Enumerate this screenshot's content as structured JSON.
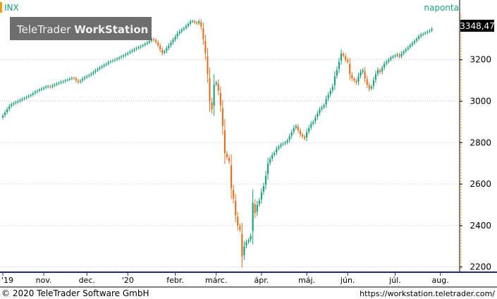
{
  "header": {
    "symbol": "INX",
    "period": "naponta",
    "logo_light": "TeleTrader ",
    "logo_bold": "WorkStation"
  },
  "last_price_label": "3348,47",
  "footer": {
    "copyright": "© 2020 TeleTrader Software GmbH",
    "url": "https://workstation.teletrader.com/"
  },
  "colors": {
    "up": "#1a9f7d",
    "down": "#e4701f",
    "accent": "#f0a000",
    "axis": "#000000",
    "axis_bottom": "#1a2b80",
    "grid": "#c8c8c8",
    "logo_bg": "#6e6e6e",
    "price_box_bg": "#000000"
  },
  "chart_data": {
    "type": "candlestick",
    "symbol": "INX",
    "period": "naponta",
    "y_ticks": [
      2200,
      2400,
      2600,
      2800,
      3000,
      3200
    ],
    "y_tick_labels": [
      "2200",
      "2400",
      "2600",
      "2800",
      "3000",
      "3200"
    ],
    "ylim": [
      2175,
      3420
    ],
    "x_tick_labels": [
      "'19",
      "nov.",
      "dec.",
      "'20",
      "febr.",
      "márc.",
      "ápr.",
      "máj.",
      "jún.",
      "júl.",
      "aug."
    ],
    "x_tick_bar_index": [
      0,
      19,
      39,
      58,
      80,
      99,
      120,
      141,
      160,
      182,
      203
    ],
    "bar_count": 210,
    "last_close": 3348.47,
    "grid": true,
    "closes": [
      2930,
      2945,
      2960,
      2975,
      2985,
      2990,
      2995,
      3000,
      3005,
      3010,
      3015,
      3020,
      3025,
      3030,
      3038,
      3045,
      3050,
      3055,
      3060,
      3065,
      3070,
      3072,
      3068,
      3075,
      3080,
      3085,
      3088,
      3092,
      3095,
      3100,
      3103,
      3108,
      3112,
      3110,
      3100,
      3092,
      3098,
      3108,
      3115,
      3120,
      3125,
      3132,
      3140,
      3148,
      3155,
      3162,
      3168,
      3175,
      3180,
      3188,
      3192,
      3196,
      3200,
      3205,
      3210,
      3215,
      3220,
      3226,
      3232,
      3238,
      3244,
      3250,
      3255,
      3260,
      3265,
      3270,
      3276,
      3282,
      3290,
      3300,
      3295,
      3285,
      3270,
      3250,
      3232,
      3240,
      3255,
      3268,
      3282,
      3296,
      3310,
      3326,
      3336,
      3345,
      3352,
      3362,
      3372,
      3384,
      3386,
      3380,
      3375,
      3385,
      3360,
      3300,
      3230,
      3130,
      3000,
      2960,
      3080,
      3090,
      3050,
      2980,
      2880,
      2750,
      2730,
      2710,
      2580,
      2530,
      2450,
      2400,
      2380,
      2250,
      2300,
      2320,
      2330,
      2350,
      2510,
      2460,
      2500,
      2520,
      2560,
      2590,
      2640,
      2700,
      2720,
      2740,
      2750,
      2770,
      2780,
      2790,
      2795,
      2800,
      2810,
      2830,
      2850,
      2870,
      2880,
      2860,
      2840,
      2830,
      2820,
      2850,
      2870,
      2890,
      2900,
      2920,
      2940,
      2960,
      2970,
      2980,
      3010,
      3030,
      3050,
      3070,
      3120,
      3150,
      3190,
      3230,
      3220,
      3200,
      3190,
      3130,
      3110,
      3100,
      3090,
      3120,
      3140,
      3150,
      3110,
      3080,
      3060,
      3070,
      3100,
      3130,
      3150,
      3140,
      3160,
      3180,
      3190,
      3200,
      3210,
      3215,
      3220,
      3225,
      3215,
      3230,
      3240,
      3250,
      3260,
      3270,
      3280,
      3290,
      3300,
      3312,
      3320,
      3325,
      3330,
      3335,
      3340,
      3348
    ]
  }
}
